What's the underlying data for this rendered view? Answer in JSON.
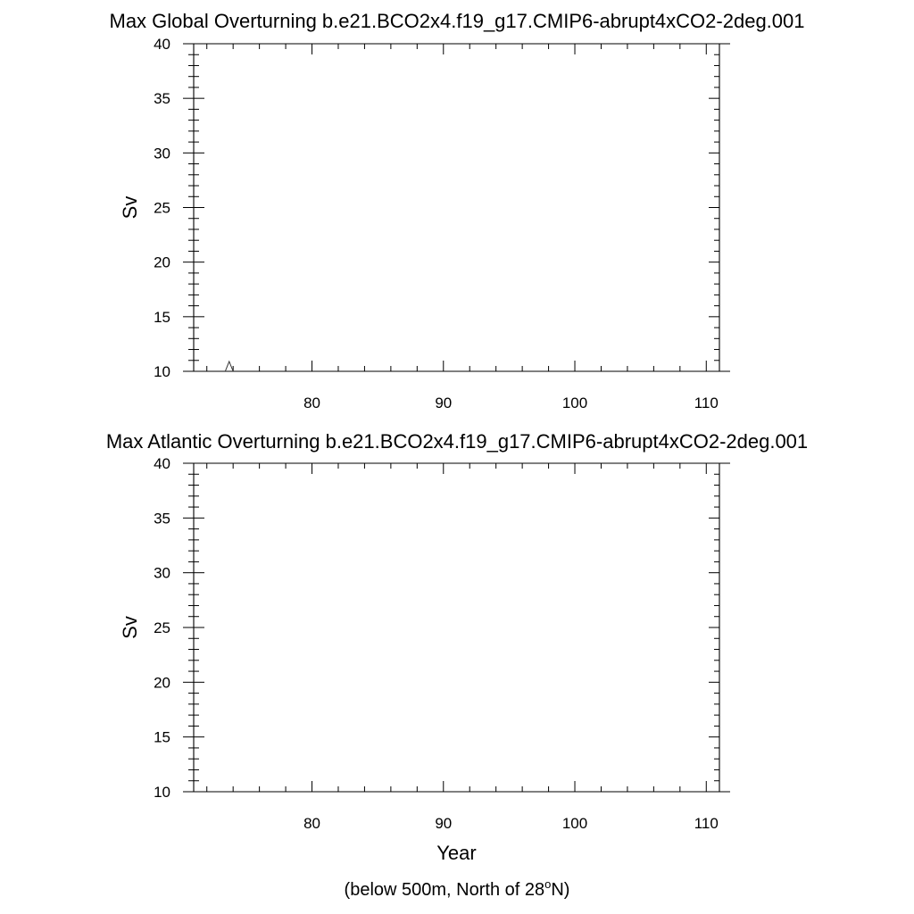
{
  "chart_data": [
    {
      "type": "line",
      "title": "Max Global Overturning b.e21.BCO2x4.f19_g17.CMIP6-abrupt4xCO2-2deg.001",
      "xlabel": "",
      "ylabel": "Sv",
      "xlim": [
        71,
        111
      ],
      "ylim": [
        10,
        40
      ],
      "x_ticks": [
        80,
        90,
        100,
        110
      ],
      "y_ticks": [
        10,
        15,
        20,
        25,
        30,
        35,
        40
      ],
      "grid": false,
      "series": [
        {
          "x": [
            73.4,
            73.7,
            74.0
          ],
          "y": [
            10.0,
            10.9,
            10.0
          ]
        }
      ]
    },
    {
      "type": "line",
      "title": "Max Atlantic Overturning b.e21.BCO2x4.f19_g17.CMIP6-abrupt4xCO2-2deg.001",
      "xlabel": "Year",
      "ylabel": "Sv",
      "xlim": [
        71,
        111
      ],
      "ylim": [
        10,
        40
      ],
      "x_ticks": [
        80,
        90,
        100,
        110
      ],
      "y_ticks": [
        10,
        15,
        20,
        25,
        30,
        35,
        40
      ],
      "grid": false,
      "series": []
    }
  ],
  "footnote": {
    "prefix": "(below 500m, North of 28",
    "superscript": "o",
    "suffix": "N)"
  }
}
